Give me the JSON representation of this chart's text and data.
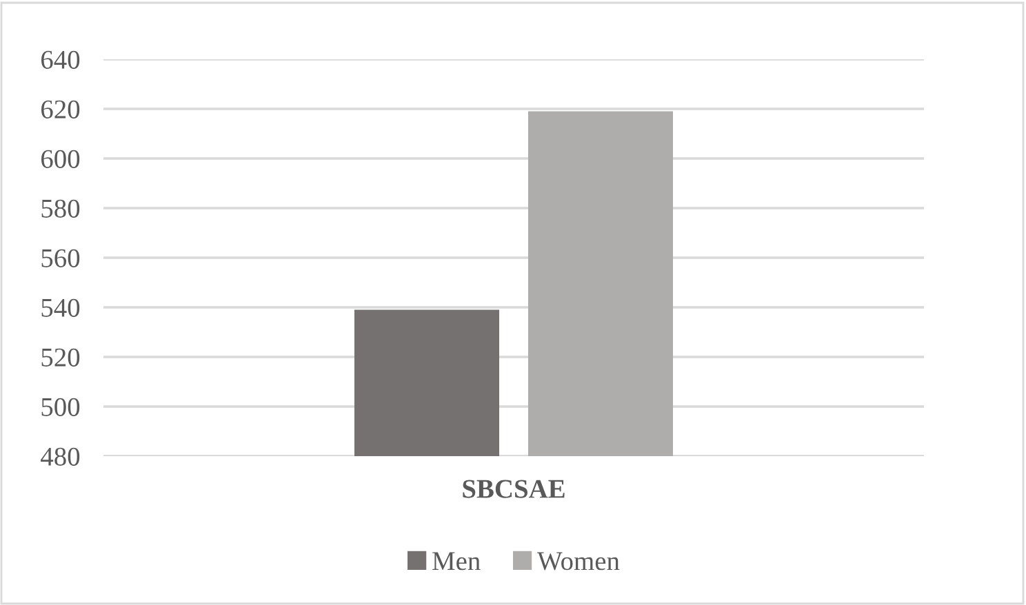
{
  "chart_data": {
    "type": "bar",
    "categories": [
      "SBCSAE"
    ],
    "series": [
      {
        "name": "Men",
        "color": "#767171",
        "values": [
          539
        ]
      },
      {
        "name": "Women",
        "color": "#aeadab",
        "values": [
          619
        ]
      }
    ],
    "ylim": [
      480,
      640
    ],
    "yticks": [
      480,
      500,
      520,
      540,
      560,
      580,
      600,
      620,
      640
    ],
    "grid": "y",
    "legend": "bottom"
  }
}
